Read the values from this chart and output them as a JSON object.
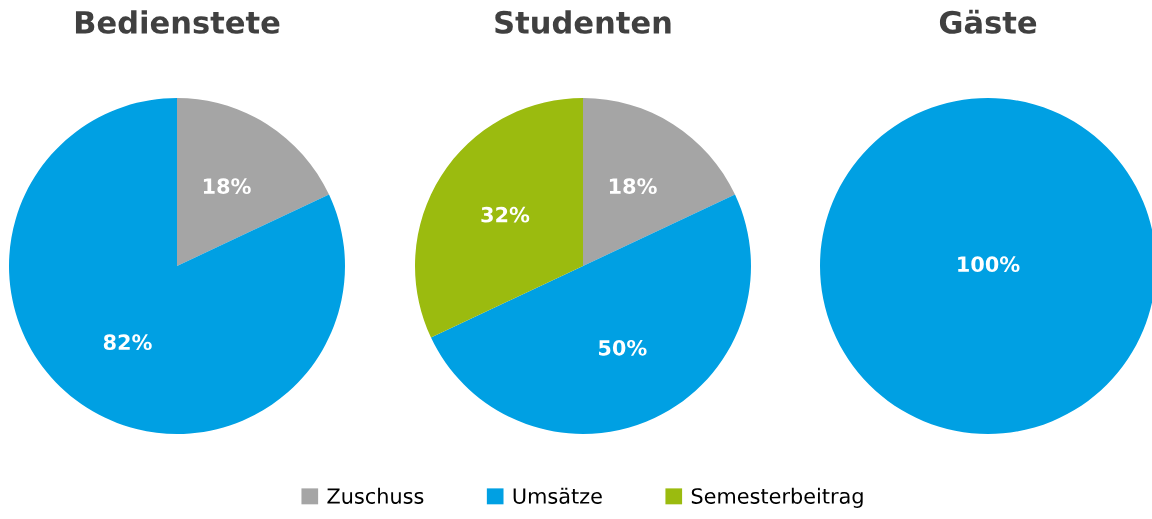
{
  "chart_data": [
    {
      "type": "pie",
      "title": "Bedienstete",
      "categories": [
        null,
        null
      ],
      "values": [
        18,
        82
      ],
      "colors": [
        "#a5a5a5",
        "#00a0e3"
      ],
      "value_labels": [
        "18%",
        "82%"
      ]
    },
    {
      "type": "pie",
      "title": "Studenten",
      "categories": [
        "Zuschuss",
        "Umsätze",
        "Semesterbeitrag"
      ],
      "values": [
        18,
        50,
        32
      ],
      "colors": [
        "#a5a5a5",
        "#00a0e3",
        "#9bbb0f"
      ],
      "value_labels": [
        "18%",
        "50%",
        "32%"
      ],
      "legend": "bottom"
    },
    {
      "type": "pie",
      "title": "Gäste",
      "categories": [
        null
      ],
      "values": [
        100
      ],
      "colors": [
        "#00a0e3"
      ],
      "value_labels": [
        "100%"
      ]
    }
  ]
}
